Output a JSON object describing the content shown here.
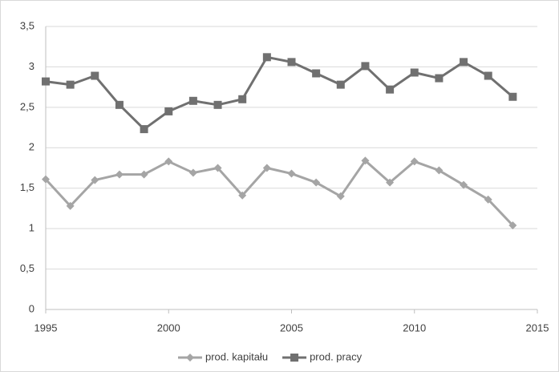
{
  "chart_data": {
    "type": "line",
    "x": [
      1995,
      1996,
      1997,
      1998,
      1999,
      2000,
      2001,
      2002,
      2003,
      2004,
      2005,
      2006,
      2007,
      2008,
      2009,
      2010,
      2011,
      2012,
      2013,
      2014
    ],
    "series": [
      {
        "name": "prod. kapitału",
        "color": "#a5a5a5",
        "marker": "diamond",
        "values": [
          1.61,
          1.28,
          1.6,
          1.67,
          1.67,
          1.83,
          1.69,
          1.75,
          1.41,
          1.75,
          1.68,
          1.57,
          1.4,
          1.84,
          1.57,
          1.83,
          1.72,
          1.54,
          1.36,
          1.04
        ]
      },
      {
        "name": "prod. pracy",
        "color": "#707070",
        "marker": "square",
        "values": [
          2.82,
          2.78,
          2.89,
          2.53,
          2.23,
          2.45,
          2.58,
          2.53,
          2.6,
          3.12,
          3.06,
          2.92,
          2.78,
          3.01,
          2.72,
          2.93,
          2.86,
          3.06,
          2.89,
          2.63
        ]
      }
    ],
    "xlim": [
      1995,
      2015
    ],
    "xticks": [
      1995,
      2000,
      2005,
      2010,
      2015
    ],
    "ylim": [
      0,
      3.5
    ],
    "yticks": [
      0,
      {
        "value": 0.5,
        "label": "0,5"
      },
      1,
      {
        "value": 1.5,
        "label": "1,5"
      },
      2,
      {
        "value": 2.5,
        "label": "2,5"
      },
      3,
      {
        "value": 3.5,
        "label": "3,5"
      }
    ],
    "grid": true,
    "legend": "bottom"
  }
}
